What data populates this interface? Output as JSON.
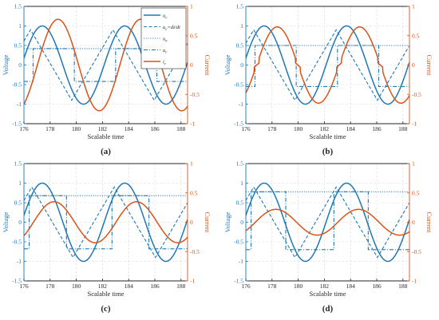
{
  "colors": {
    "voltage": "#1f77b4",
    "current": "#d95319",
    "grid": "#d9d9d9",
    "axis": "#262626"
  },
  "xaxis": {
    "label": "Scalable time",
    "ticks": [
      "176",
      "178",
      "180",
      "182",
      "184",
      "186",
      "188"
    ],
    "lim": [
      176,
      188.5
    ]
  },
  "yleft": {
    "label": "Voltage",
    "ticks": [
      "1.5",
      "1",
      "0.5",
      "0",
      "-0.5",
      "-1",
      "-1.5"
    ],
    "lim": [
      -1.5,
      1.5
    ]
  },
  "yright": {
    "label": "Current",
    "ticks": [
      "1",
      "0.5",
      "0",
      "-0.5",
      "-1"
    ],
    "lim": [
      -1,
      1
    ]
  },
  "legend": {
    "entries": [
      {
        "text": "u",
        "sub": "c",
        "suffix": "",
        "style": "solid",
        "color": "voltage"
      },
      {
        "text": "u",
        "sub": "c",
        "suffix": "=di/dt",
        "style": "dashed",
        "color": "voltage"
      },
      {
        "text": "u",
        "sub": "e",
        "suffix": "",
        "style": "dotted",
        "color": "voltage"
      },
      {
        "text": "u",
        "sub": "r",
        "suffix": "",
        "style": "dashdot",
        "color": "voltage"
      },
      {
        "text": "i",
        "sub": "r",
        "suffix": "",
        "style": "solid",
        "color": "current"
      }
    ]
  },
  "chart_data": [
    {
      "type": "line",
      "label": "(a)",
      "x_range": [
        176,
        188.5
      ],
      "ylim_left": [
        -1.5,
        1.5
      ],
      "ylim_right": [
        -1,
        1
      ],
      "grid": true,
      "legend_position": "top-right",
      "series": [
        {
          "name": "uc",
          "axis": "left",
          "style": "solid",
          "kind": "sine",
          "amplitude": 1.0,
          "period": 6.3,
          "peak_at": 177.4
        },
        {
          "name": "uc=di/dt",
          "axis": "left",
          "style": "dashed",
          "kind": "sine_segments",
          "amplitude": 1.0,
          "period": 6.3,
          "peak_at": 176.5,
          "zero_during": []
        },
        {
          "name": "ue",
          "axis": "left",
          "style": "dotted",
          "kind": "constant",
          "value": 0.42
        },
        {
          "name": "ur",
          "axis": "left",
          "style": "dashdot",
          "kind": "square",
          "high": 0.42,
          "low": -0.42,
          "period": 6.3,
          "rise_at": 176.7,
          "duty": 0.5
        },
        {
          "name": "ir",
          "axis": "right",
          "style": "solid",
          "kind": "sine",
          "amplitude": 0.78,
          "period": 6.3,
          "peak_at": 178.6
        }
      ]
    },
    {
      "type": "line",
      "label": "(b)",
      "x_range": [
        176,
        188.5
      ],
      "ylim_left": [
        -1.5,
        1.5
      ],
      "ylim_right": [
        -1,
        1
      ],
      "grid": true,
      "series": [
        {
          "name": "uc",
          "axis": "left",
          "style": "solid",
          "kind": "sine",
          "amplitude": 1.0,
          "period": 6.3,
          "peak_at": 177.4
        },
        {
          "name": "uc=di/dt",
          "axis": "left",
          "style": "dashed",
          "kind": "sine_segments",
          "amplitude": 1.0,
          "period": 6.3,
          "peak_at": 176.6,
          "zero_during": []
        },
        {
          "name": "ue",
          "axis": "left",
          "style": "dotted",
          "kind": "constant",
          "value": 0.5
        },
        {
          "name": "ur",
          "axis": "left",
          "style": "dashdot",
          "kind": "square",
          "high": 0.5,
          "low": -0.55,
          "period": 6.3,
          "rise_at": 176.7,
          "duty": 0.5
        },
        {
          "name": "ir",
          "axis": "right",
          "style": "solid",
          "kind": "sine_flat",
          "amplitude": 0.65,
          "period": 6.3,
          "peak_at": 178.4,
          "flat": 0.12
        }
      ]
    },
    {
      "type": "line",
      "label": "(c)",
      "x_range": [
        176,
        188.5
      ],
      "ylim_left": [
        -1.5,
        1.5
      ],
      "ylim_right": [
        -1,
        1
      ],
      "grid": true,
      "series": [
        {
          "name": "uc",
          "axis": "left",
          "style": "solid",
          "kind": "sine",
          "amplitude": 1.0,
          "period": 6.3,
          "peak_at": 177.4
        },
        {
          "name": "uc=di/dt",
          "axis": "left",
          "style": "dashed",
          "kind": "sine_segments",
          "amplitude": 1.0,
          "period": 6.3,
          "peak_at": 176.6,
          "zero_during": []
        },
        {
          "name": "ue",
          "axis": "left",
          "style": "dotted",
          "kind": "constant",
          "value": 0.68
        },
        {
          "name": "ur",
          "axis": "left",
          "style": "dashdot",
          "kind": "square",
          "high": 0.68,
          "low": -0.68,
          "period": 6.3,
          "rise_at": 176.4,
          "duty": 0.45
        },
        {
          "name": "ir",
          "axis": "right",
          "style": "solid",
          "kind": "sine_gap",
          "amplitude": 0.35,
          "period": 6.3,
          "peak_at": 178.3
        }
      ]
    },
    {
      "type": "line",
      "label": "(d)",
      "x_range": [
        176,
        188.5
      ],
      "ylim_left": [
        -1.5,
        1.5
      ],
      "ylim_right": [
        -1,
        1
      ],
      "grid": true,
      "series": [
        {
          "name": "uc",
          "axis": "left",
          "style": "solid",
          "kind": "sine",
          "amplitude": 1.0,
          "period": 6.3,
          "peak_at": 177.4
        },
        {
          "name": "uc=di/dt",
          "axis": "left",
          "style": "dashed",
          "kind": "sine_segments",
          "amplitude": 1.0,
          "period": 6.3,
          "peak_at": 176.6,
          "zero_during": []
        },
        {
          "name": "ue",
          "axis": "left",
          "style": "dotted",
          "kind": "constant",
          "value": 0.78
        },
        {
          "name": "ur",
          "axis": "left",
          "style": "dashdot",
          "kind": "square",
          "high": 0.78,
          "low": -0.7,
          "period": 6.3,
          "rise_at": 176.4,
          "duty": 0.42
        },
        {
          "name": "ir",
          "axis": "right",
          "style": "solid",
          "kind": "sine_gap",
          "amplitude": 0.22,
          "period": 6.3,
          "peak_at": 178.3
        }
      ]
    }
  ]
}
